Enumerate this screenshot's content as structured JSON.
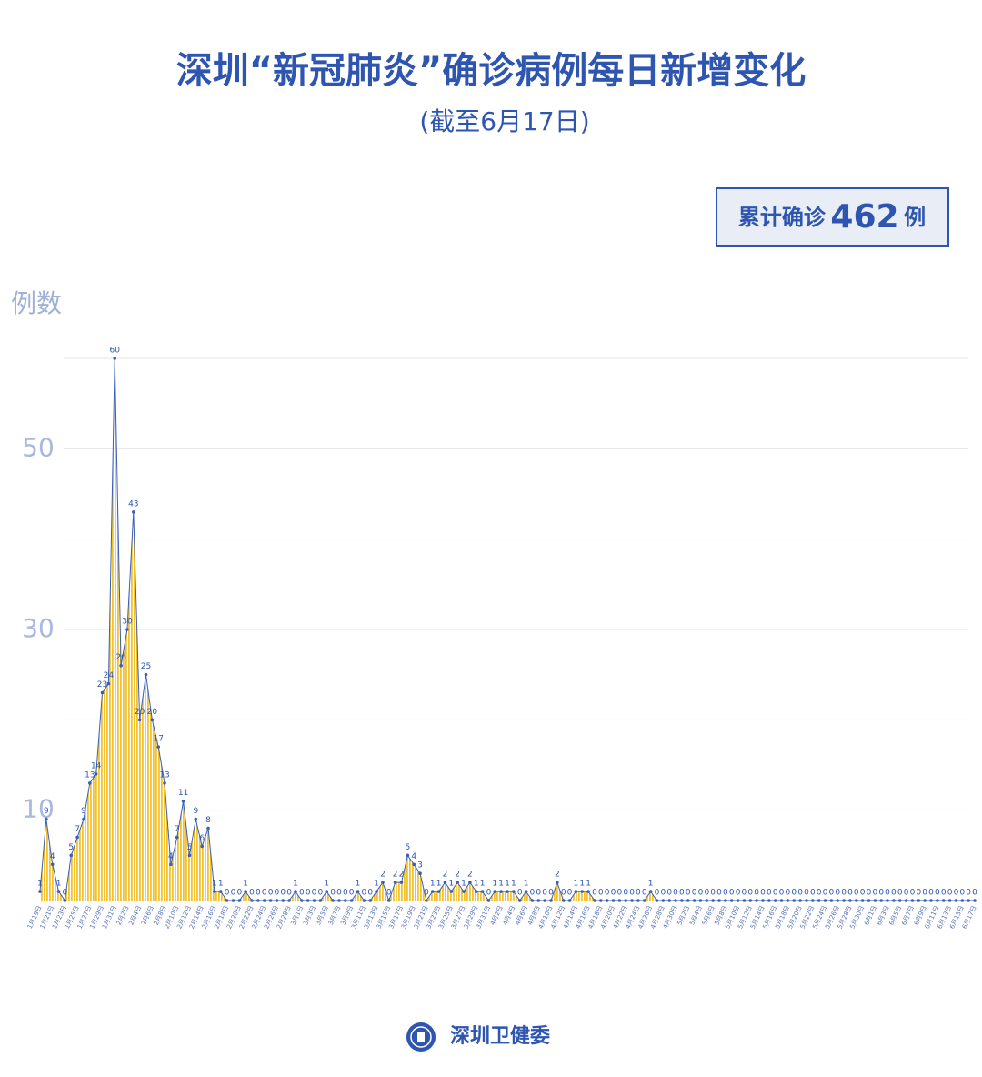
{
  "chart_data": {
    "type": "line",
    "title": "深圳“新冠肺炎”确诊病例每日新增变化",
    "subtitle": "(截至6月17日)",
    "total_prefix": "累计确诊",
    "total": 462,
    "total_suffix": "例",
    "y_label": "例数",
    "source": "深圳卫健委",
    "line_color": "#3a5fb8",
    "fill_color": "#f2c230",
    "ylim": [
      0,
      60
    ],
    "yticks": [
      {
        "value": 10,
        "label": "10"
      },
      {
        "value": 20,
        "label": null
      },
      {
        "value": 30,
        "label": "30"
      },
      {
        "value": 40,
        "label": null
      },
      {
        "value": 50,
        "label": "50"
      },
      {
        "value": 60,
        "label": null
      }
    ],
    "grid": true,
    "categories": [
      "1月19日",
      null,
      "1月21日",
      null,
      "1月23日",
      null,
      "1月25日",
      null,
      "1月27日",
      null,
      "1月29日",
      null,
      "1月31日",
      null,
      "2月2日",
      null,
      "2月4日",
      null,
      "2月6日",
      null,
      "2月8日",
      null,
      "2月10日",
      null,
      "2月12日",
      null,
      "2月14日",
      null,
      "2月16日",
      null,
      "2月18日",
      null,
      "2月20日",
      null,
      "2月22日",
      null,
      "2月24日",
      null,
      "2月26日",
      null,
      "2月28日",
      null,
      "3月1日",
      null,
      "3月3日",
      null,
      "3月5日",
      null,
      "3月7日",
      null,
      "3月9日",
      null,
      "3月11日",
      null,
      "3月13日",
      null,
      "3月15日",
      null,
      "3月17日",
      null,
      "3月19日",
      null,
      "3月21日",
      null,
      "3月23日",
      null,
      "3月25日",
      null,
      "3月27日",
      null,
      "3月29日",
      null,
      "3月31日",
      null,
      "4月2日",
      null,
      "4月4日",
      null,
      "4月6日",
      null,
      "4月8日",
      null,
      "4月10日",
      null,
      "4月12日",
      null,
      "4月14日",
      null,
      "4月16日",
      null,
      "4月18日",
      null,
      "4月20日",
      null,
      "4月22日",
      null,
      "4月24日",
      null,
      "4月26日",
      null,
      "4月28日",
      null,
      "4月30日",
      null,
      "5月2日",
      null,
      "5月4日",
      null,
      "5月6日",
      null,
      "5月8日",
      null,
      "5月10日",
      null,
      "5月12日",
      null,
      "5月14日",
      null,
      "5月16日",
      null,
      "5月18日",
      null,
      "5月20日",
      null,
      "5月22日",
      null,
      "5月24日",
      null,
      "5月26日",
      null,
      "5月28日",
      null,
      "5月30日",
      null,
      "6月1日",
      null,
      "6月3日",
      null,
      "6月5日",
      null,
      "6月7日",
      null,
      "6月9日",
      null,
      "6月11日",
      null,
      "6月13日",
      null,
      "6月15日",
      null,
      "6月17日"
    ],
    "values": [
      1,
      9,
      4,
      1,
      0,
      5,
      7,
      9,
      13,
      14,
      23,
      24,
      60,
      26,
      30,
      43,
      20,
      25,
      20,
      17,
      13,
      4,
      7,
      11,
      5,
      9,
      6,
      8,
      1,
      1,
      0,
      0,
      0,
      1,
      0,
      0,
      0,
      0,
      0,
      0,
      0,
      1,
      0,
      0,
      0,
      0,
      1,
      0,
      0,
      0,
      0,
      1,
      0,
      0,
      1,
      2,
      0,
      2,
      2,
      5,
      4,
      3,
      0,
      1,
      1,
      2,
      1,
      2,
      1,
      2,
      1,
      1,
      0,
      1,
      1,
      1,
      1,
      0,
      1,
      0,
      0,
      0,
      0,
      2,
      0,
      0,
      1,
      1,
      1,
      0,
      0,
      0,
      0,
      0,
      0,
      0,
      0,
      0,
      1,
      0,
      0,
      0,
      0,
      0,
      0,
      0,
      0,
      0,
      0,
      0,
      0,
      0,
      0,
      0,
      0,
      0,
      0,
      0,
      0,
      0,
      0,
      0,
      0,
      0,
      0,
      0,
      0,
      0,
      0,
      0,
      0,
      0,
      0,
      0,
      0,
      0,
      0,
      0,
      0,
      0,
      0,
      0,
      0,
      0,
      0,
      0,
      0,
      0,
      0,
      0,
      0
    ]
  }
}
